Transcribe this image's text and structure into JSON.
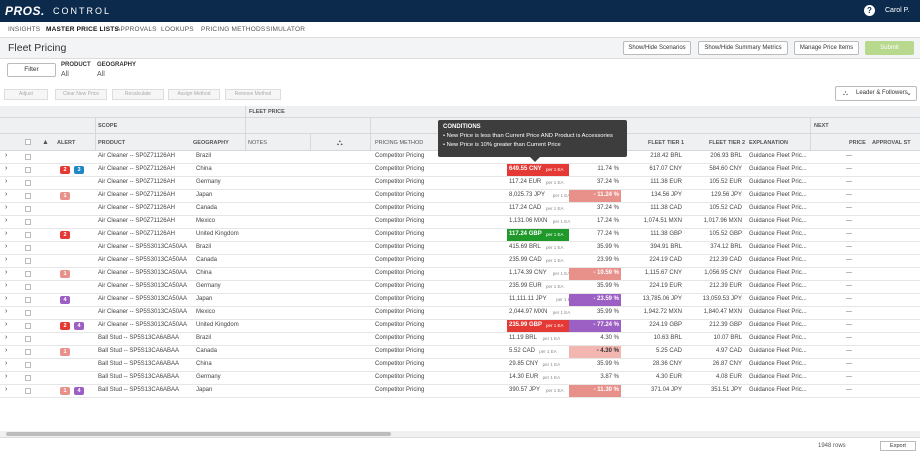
{
  "app": {
    "logo": "PROS.",
    "name": "CONTROL",
    "user": "Carol P.",
    "help_icon": "?"
  },
  "nav": {
    "items": [
      "INSIGHTS",
      "MASTER PRICE LISTS",
      "APPROVALS",
      "LOOKUPS",
      "PRICING METHODS",
      "SIMULATOR"
    ],
    "active": 1
  },
  "page": {
    "title": "Fleet Pricing"
  },
  "toolbar": {
    "show_hide_scenarios": "Show/Hide Scenarios",
    "show_hide_summary": "Show/Hide Summary Metrics",
    "manage_price_items": "Manage Price Items",
    "submit": "Submit"
  },
  "filters": {
    "filter_button": "Filter",
    "product_label": "PRODUCT",
    "product_value": "All",
    "geography_label": "GEOGRAPHY",
    "geography_value": "All"
  },
  "actions": {
    "adjust": "Adjust",
    "clear_new_price": "Clear New Price",
    "recalculate": "Recalculate",
    "assign_method": "Assign Method",
    "remove_method": "Remove Method",
    "leader_followers": "Leader & Followers"
  },
  "grid_headers": {
    "fleet_price": "FLEET PRICE",
    "scope": "SCOPE",
    "next": "NEXT",
    "alert": "ALERT",
    "product": "PRODUCT",
    "geography": "GEOGRAPHY",
    "notes": "NOTES",
    "pricing_method": "PRICING METHOD",
    "fleet_tier1": "FLEET TIER 1",
    "fleet_tier2": "FLEET TIER 2",
    "explanation": "EXPLANATION",
    "price": "PRICE",
    "approval": "APPROVAL ST"
  },
  "tooltip": {
    "title": "CONDITIONS",
    "line1": "• New Price is less than Current Price AND Product is Accessories",
    "line2": "• New Price is 10% greater than Current Price"
  },
  "colors": {
    "red": "#e53935",
    "blue": "#1e88c7",
    "purple": "#9c5fc4",
    "salmon": "#e8908a",
    "light_salmon": "#f3b7b1",
    "green": "#1f9a2a",
    "orange_badge": "#e57373"
  },
  "rows": [
    {
      "b": [],
      "product": "Air Cleaner -- SP0Z71126AH",
      "geo": "Brazil",
      "method": "Competitor Pricing",
      "price": "",
      "pct": "11.13 %",
      "t1": "218.42 BRL",
      "t2": "206.93 BRL",
      "expl": "Guidance Fleet Pric...",
      "np": "---"
    },
    {
      "b": [
        [
          "2",
          "red"
        ],
        [
          "3",
          "blue"
        ]
      ],
      "product": "Air Cleaner -- SP0Z71126AH",
      "geo": "China",
      "method": "Competitor Pricing",
      "price": "649.55 CNY",
      "unit": "per 1 EA",
      "pct": "11.74 %",
      "t1": "617.07 CNY",
      "t2": "584.60 CNY",
      "expl": "Guidance Fleet Pric...",
      "np": "---",
      "pf": "red"
    },
    {
      "b": [],
      "product": "Air Cleaner -- SP0Z71126AH",
      "geo": "Germany",
      "method": "Competitor Pricing",
      "price": "117.24 EUR",
      "unit": "per 1 EA",
      "pct": "37.24 %",
      "t1": "111.38 EUR",
      "t2": "105.52 EUR",
      "expl": "Guidance Fleet Pric...",
      "np": "---"
    },
    {
      "b": [
        [
          "1",
          "salmon"
        ]
      ],
      "product": "Air Cleaner -- SP0Z71126AH",
      "geo": "Japan",
      "method": "Competitor Pricing",
      "price": "8,025.73 JPY",
      "unit": "per 1 EA",
      "pct": "- 11.24 %",
      "t1": "134.56 JPY",
      "t2": "129.56 JPY",
      "expl": "Guidance Fleet Pric...",
      "np": "---",
      "cf": "salmon"
    },
    {
      "b": [],
      "product": "Air Cleaner -- SP0Z71126AH",
      "geo": "Canada",
      "method": "Competitor Pricing",
      "price": "117.24 CAD",
      "unit": "per 1 EA",
      "pct": "37.24 %",
      "t1": "111.38 CAD",
      "t2": "105.52 CAD",
      "expl": "Guidance Fleet Pric...",
      "np": "---"
    },
    {
      "b": [],
      "product": "Air Cleaner -- SP0Z71126AH",
      "geo": "Mexico",
      "method": "Competitor Pricing",
      "price": "1,131.06 MXN",
      "unit": "per 1 EA",
      "pct": "17.24 %",
      "t1": "1,074.51 MXN",
      "t2": "1,017.96 MXN",
      "expl": "Guidance Fleet Pric...",
      "np": "---"
    },
    {
      "b": [
        [
          "2",
          "red"
        ]
      ],
      "product": "Air Cleaner -- SP0Z71126AH",
      "geo": "United Kingdom",
      "method": "Competitor Pricing",
      "price": "117.24 GBP",
      "unit": "per 1 EA",
      "pct": "77.24 %",
      "t1": "111.38 GBP",
      "t2": "105.52 GBP",
      "expl": "Guidance Fleet Pric...",
      "np": "---",
      "pf": "green"
    },
    {
      "b": [],
      "product": "Air Cleaner -- SP5S3013CA50AA",
      "geo": "Brazil",
      "method": "Competitor Pricing",
      "price": "415.69 BRL",
      "unit": "per 1 EA",
      "pct": "35.99 %",
      "t1": "394.91 BRL",
      "t2": "374.12 BRL",
      "expl": "Guidance Fleet Pric...",
      "np": "---"
    },
    {
      "b": [],
      "product": "Air Cleaner -- SP5S3013CA50AA",
      "geo": "Canada",
      "method": "Competitor Pricing",
      "price": "235.99 CAD",
      "unit": "per 1 EA",
      "pct": "23.99 %",
      "t1": "224.19 CAD",
      "t2": "212.39 CAD",
      "expl": "Guidance Fleet Pric...",
      "np": "---"
    },
    {
      "b": [
        [
          "1",
          "salmon"
        ]
      ],
      "product": "Air Cleaner -- SP5S3013CA50AA",
      "geo": "China",
      "method": "Competitor Pricing",
      "price": "1,174.39 CNY",
      "unit": "per 1 EA",
      "pct": "- 10.59 %",
      "t1": "1,115.67 CNY",
      "t2": "1,056.95 CNY",
      "expl": "Guidance Fleet Pric...",
      "np": "---",
      "cf": "salmon"
    },
    {
      "b": [],
      "product": "Air Cleaner -- SP5S3013CA50AA",
      "geo": "Germany",
      "method": "Competitor Pricing",
      "price": "235.99 EUR",
      "unit": "per 1 EA",
      "pct": "35.99 %",
      "t1": "224.19 EUR",
      "t2": "212.39 EUR",
      "expl": "Guidance Fleet Pric...",
      "np": "---"
    },
    {
      "b": [
        [
          "4",
          "purple"
        ]
      ],
      "product": "Air Cleaner -- SP5S3013CA50AA",
      "geo": "Japan",
      "method": "Competitor Pricing",
      "price": "11,111.11 JPY",
      "unit": "per 1 EA",
      "pct": "- 23.59 %",
      "t1": "13,785.06 JPY",
      "t2": "13,059.53 JPY",
      "expl": "Guidance Fleet Pric...",
      "np": "---",
      "cf": "purple"
    },
    {
      "b": [],
      "product": "Air Cleaner -- SP5S3013CA50AA",
      "geo": "Mexico",
      "method": "Competitor Pricing",
      "price": "2,044.97 MXN",
      "unit": "per 1 EA",
      "pct": "35.99 %",
      "t1": "1,942.72 MXN",
      "t2": "1,840.47 MXN",
      "expl": "Guidance Fleet Pric...",
      "np": "---"
    },
    {
      "b": [
        [
          "2",
          "red"
        ],
        [
          "4",
          "purple"
        ]
      ],
      "product": "Air Cleaner -- SP5S3013CA50AA",
      "geo": "United Kingdom",
      "method": "Competitor Pricing",
      "price": "235.99 GBP",
      "unit": "per 1 EA",
      "pct": "- 77.24 %",
      "t1": "224.19 GBP",
      "t2": "212.39 GBP",
      "expl": "Guidance Fleet Pric...",
      "np": "---",
      "pf": "red",
      "cf": "purple"
    },
    {
      "b": [],
      "product": "Ball Stud -- SP5S13CA6ABAA",
      "geo": "Brazil",
      "method": "Competitor Pricing",
      "price": "11.19 BRL",
      "unit": "per 1 EA",
      "pct": "4.30 %",
      "t1": "10.63 BRL",
      "t2": "10.07 BRL",
      "expl": "Guidance Fleet Pric...",
      "np": "---"
    },
    {
      "b": [
        [
          "1",
          "salmon"
        ]
      ],
      "product": "Ball Stud -- SP5S13CA6ABAA",
      "geo": "Canada",
      "method": "Competitor Pricing",
      "price": "5.52 CAD",
      "unit": "per 1 EA",
      "pct": "- 4.30 %",
      "t1": "5.25 CAD",
      "t2": "4.97 CAD",
      "expl": "Guidance Fleet Pric...",
      "np": "---",
      "cf": "light_salmon"
    },
    {
      "b": [],
      "product": "Ball Stud -- SP5S13CA6ABAA",
      "geo": "China",
      "method": "Competitor Pricing",
      "price": "29.85 CNY",
      "unit": "per 1 EA",
      "pct": "35.99 %",
      "t1": "28.36 CNY",
      "t2": "26.87 CNY",
      "expl": "Guidance Fleet Pric...",
      "np": "---"
    },
    {
      "b": [],
      "product": "Ball Stud -- SP5S13CA6ABAA",
      "geo": "Germany",
      "method": "Competitor Pricing",
      "price": "14.30 EUR",
      "unit": "per 1 EA",
      "pct": "3.87 %",
      "t1": "4.30 EUR",
      "t2": "4.08 EUR",
      "expl": "Guidance Fleet Pric...",
      "np": "---"
    },
    {
      "b": [
        [
          "1",
          "salmon"
        ],
        [
          "4",
          "purple"
        ]
      ],
      "product": "Ball Stud -- SP5S13CA6ABAA",
      "geo": "Japan",
      "method": "Competitor Pricing",
      "price": "390.57 JPY",
      "unit": "per 1 EA",
      "pct": "- 11.30 %",
      "t1": "371.04 JPY",
      "t2": "351.51 JPY",
      "expl": "Guidance Fleet Pric...",
      "np": "---",
      "cf": "salmon"
    }
  ],
  "footer": {
    "row_count": "1948 rows",
    "export": "Export"
  }
}
